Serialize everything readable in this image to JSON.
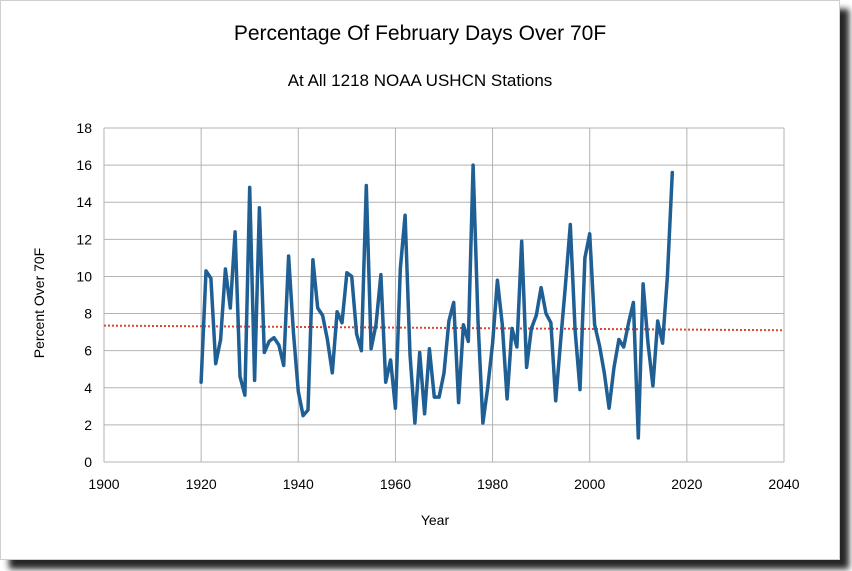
{
  "chart_data": {
    "type": "line",
    "title": "Percentage Of February Days Over 70F",
    "subtitle": "At All 1218 NOAA USHCN Stations",
    "xlabel": "Year",
    "ylabel": "Percent Over 70F",
    "xlim": [
      1900,
      2040
    ],
    "ylim": [
      0,
      18
    ],
    "xticks": [
      1900,
      1920,
      1940,
      1960,
      1980,
      2000,
      2020,
      2040
    ],
    "yticks": [
      0,
      2,
      4,
      6,
      8,
      10,
      12,
      14,
      16,
      18
    ],
    "grid": true,
    "legend": "none",
    "series": [
      {
        "color": "#1f5f94",
        "x": [
          1920,
          1921,
          1922,
          1923,
          1924,
          1925,
          1926,
          1927,
          1928,
          1929,
          1930,
          1931,
          1932,
          1933,
          1934,
          1935,
          1936,
          1937,
          1938,
          1939,
          1940,
          1941,
          1942,
          1943,
          1944,
          1945,
          1946,
          1947,
          1948,
          1949,
          1950,
          1951,
          1952,
          1953,
          1954,
          1955,
          1956,
          1957,
          1958,
          1959,
          1960,
          1961,
          1962,
          1963,
          1964,
          1965,
          1966,
          1967,
          1968,
          1969,
          1970,
          1971,
          1972,
          1973,
          1974,
          1975,
          1976,
          1977,
          1978,
          1979,
          1980,
          1981,
          1982,
          1983,
          1984,
          1985,
          1986,
          1987,
          1988,
          1989,
          1990,
          1991,
          1992,
          1993,
          1994,
          1995,
          1996,
          1997,
          1998,
          1999,
          2000,
          2001,
          2002,
          2003,
          2004,
          2005,
          2006,
          2007,
          2008,
          2009,
          2010,
          2011,
          2012,
          2013,
          2014,
          2015,
          2016,
          2017
        ],
        "values": [
          4.3,
          10.3,
          9.9,
          5.3,
          6.6,
          10.4,
          8.3,
          12.4,
          4.6,
          3.6,
          14.8,
          4.4,
          13.7,
          5.9,
          6.5,
          6.7,
          6.3,
          5.2,
          11.1,
          7.0,
          3.8,
          2.5,
          2.8,
          10.9,
          8.3,
          7.9,
          6.6,
          4.8,
          8.1,
          7.5,
          10.2,
          10.0,
          6.9,
          6.0,
          14.9,
          6.1,
          7.4,
          10.1,
          4.3,
          5.5,
          2.9,
          10.4,
          13.3,
          5.8,
          2.1,
          5.9,
          2.6,
          6.1,
          3.5,
          3.5,
          4.8,
          7.6,
          8.6,
          3.2,
          7.4,
          6.5,
          16.0,
          7.6,
          2.1,
          4.0,
          6.4,
          9.8,
          7.4,
          3.4,
          7.2,
          6.2,
          11.9,
          5.1,
          7.2,
          7.9,
          9.4,
          8.0,
          7.5,
          3.3,
          6.5,
          9.5,
          12.8,
          7.1,
          3.9,
          11.0,
          12.3,
          7.4,
          6.3,
          4.8,
          2.9,
          5.1,
          6.6,
          6.2,
          7.5,
          8.6,
          1.3,
          9.6,
          6.4,
          4.1,
          7.6,
          6.4,
          10.0,
          15.6
        ]
      }
    ],
    "trendline": {
      "style": "dotted",
      "color": "#e0462a",
      "x": [
        1900,
        2040
      ],
      "values": [
        7.35,
        7.1
      ]
    }
  }
}
